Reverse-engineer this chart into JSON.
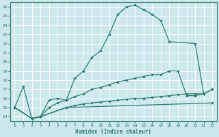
{
  "xlabel": "Humidex (Indice chaleur)",
  "bg_color": "#cce8ed",
  "line_color": "#2d7b6e",
  "grid_color": "#ffffff",
  "xlim": [
    -0.5,
    23.5
  ],
  "ylim": [
    13.5,
    26.5
  ],
  "yticks": [
    14,
    15,
    16,
    17,
    18,
    19,
    20,
    21,
    22,
    23,
    24,
    25,
    26
  ],
  "xticks": [
    0,
    1,
    2,
    3,
    4,
    5,
    6,
    7,
    8,
    9,
    10,
    11,
    12,
    13,
    14,
    15,
    16,
    17,
    18,
    19,
    20,
    21,
    22,
    23
  ],
  "line1": {
    "x": [
      0,
      1,
      2,
      3,
      4,
      5,
      6,
      7,
      8,
      9,
      10,
      11,
      12,
      13,
      14,
      15,
      16,
      17,
      18,
      21,
      22
    ],
    "y": [
      15,
      17.3,
      13.8,
      14.0,
      15.8,
      16.0,
      15.8,
      18.2,
      19.0,
      20.5,
      21.2,
      23.0,
      25.2,
      26.0,
      26.2,
      25.7,
      25.2,
      24.5,
      22.2,
      22.0,
      16.5
    ]
  },
  "line2": {
    "x": [
      0,
      2,
      3,
      4,
      5,
      6,
      7,
      8,
      9,
      10,
      11,
      12,
      13,
      14,
      15,
      16,
      17,
      18,
      19,
      20,
      21,
      22,
      23
    ],
    "y": [
      15.0,
      13.8,
      14.0,
      15.0,
      15.5,
      15.8,
      16.2,
      16.5,
      17.0,
      17.2,
      17.5,
      17.8,
      18.0,
      18.2,
      18.4,
      18.6,
      18.6,
      19.0,
      19.0,
      16.3,
      16.3,
      16.5,
      17.0
    ]
  },
  "line3": {
    "x": [
      0,
      2,
      3,
      6,
      23
    ],
    "y": [
      15.0,
      13.8,
      14.0,
      15.0,
      15.5
    ]
  },
  "line4": {
    "x": [
      0,
      2,
      3,
      6,
      7,
      8,
      9,
      10,
      11,
      12,
      13,
      14,
      15,
      16,
      17,
      18,
      19,
      20,
      21,
      22,
      23
    ],
    "y": [
      15.0,
      13.8,
      14.0,
      15.0,
      15.2,
      15.4,
      15.5,
      15.6,
      15.7,
      15.8,
      15.9,
      16.0,
      16.0,
      16.1,
      16.2,
      16.3,
      16.4,
      16.5,
      16.5,
      16.5,
      17.0
    ]
  }
}
